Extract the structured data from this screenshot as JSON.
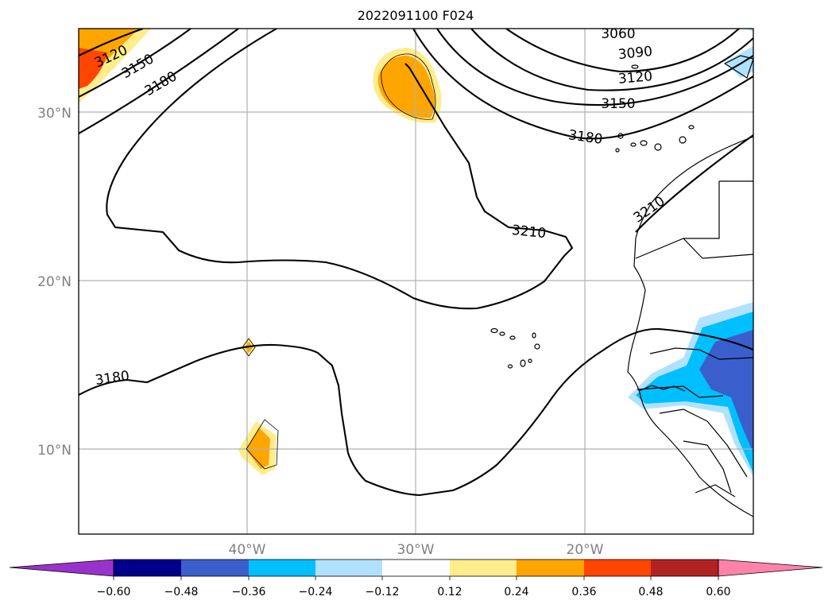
{
  "title": "2022091100 F024",
  "map": {
    "latitude_labels": [
      "30°N",
      "20°N",
      "10°N"
    ],
    "longitude_labels": [
      "40°W",
      "30°W",
      "20°W"
    ]
  },
  "contours": {
    "labels": [
      "3060",
      "3090",
      "3120",
      "3150",
      "3180",
      "3210",
      "3120",
      "3150",
      "3180",
      "3180",
      "3210"
    ]
  },
  "colorbar": {
    "colors": [
      "#9932cc",
      "#00008b",
      "#3a5fcd",
      "#00bfff",
      "#b0e2ff",
      "#ffffff",
      "#ffec8b",
      "#ffa500",
      "#ff4500",
      "#b22222",
      "#ff82ab"
    ],
    "tick_labels": [
      "−0.60",
      "−0.48",
      "−0.36",
      "−0.24",
      "−0.12",
      "0.12",
      "0.24",
      "0.36",
      "0.48",
      "0.60"
    ]
  },
  "chart_data": {
    "type": "heatmap",
    "title": "2022091100 F024",
    "xlim": [
      "50°W",
      "10°W"
    ],
    "ylim": [
      "5°N",
      "35°N"
    ],
    "contour_levels": [
      3060,
      3090,
      3120,
      3150,
      3180,
      3210
    ],
    "colorbar_bounds": [
      -0.6,
      -0.48,
      -0.36,
      -0.24,
      -0.12,
      0.12,
      0.24,
      0.36,
      0.48,
      0.6
    ],
    "colorbar_extend": "both"
  }
}
